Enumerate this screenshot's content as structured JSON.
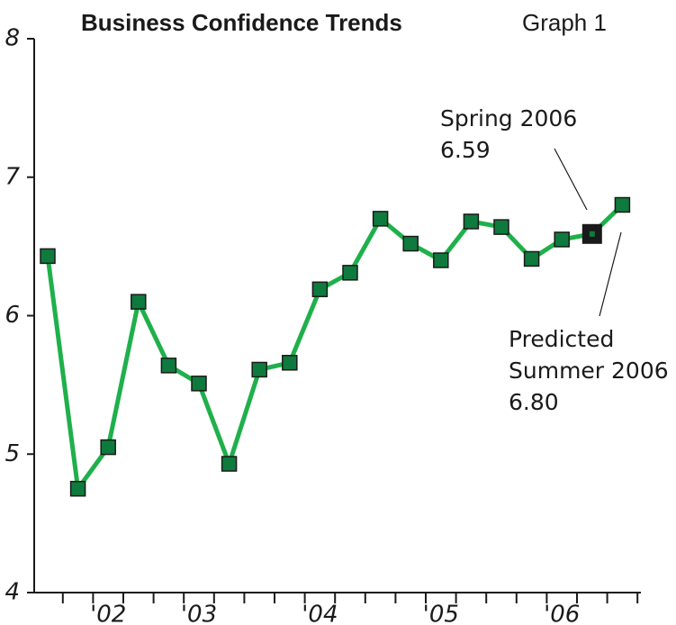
{
  "chart_data": {
    "type": "line",
    "title": "Business Confidence Trends",
    "subtitle": "Graph 1",
    "categories": [
      null,
      null,
      "'02",
      null,
      null,
      "'03",
      null,
      null,
      null,
      "'04",
      null,
      null,
      null,
      "'05",
      null,
      null,
      null,
      "'06",
      null,
      null
    ],
    "series": [
      {
        "color": "#1fb04b",
        "marker_color": "#0f7a3d",
        "values": [
          6.43,
          4.75,
          5.05,
          6.1,
          5.64,
          5.51,
          4.93,
          5.61,
          5.66,
          6.19,
          6.31,
          6.7,
          6.52,
          6.4,
          6.68,
          6.64,
          6.41,
          6.55,
          6.59,
          6.8
        ]
      }
    ],
    "highlight_index": 18,
    "highlight_color": "#1a1a1a",
    "ylim": [
      4,
      8
    ],
    "yticks": [
      4,
      5,
      6,
      7,
      8
    ],
    "annotations": [
      {
        "point": 18,
        "lines": [
          "Spring 2006",
          "6.59"
        ]
      },
      {
        "point": 19,
        "lines": [
          "Predicted",
          "Summer 2006",
          "6.80"
        ]
      }
    ]
  }
}
